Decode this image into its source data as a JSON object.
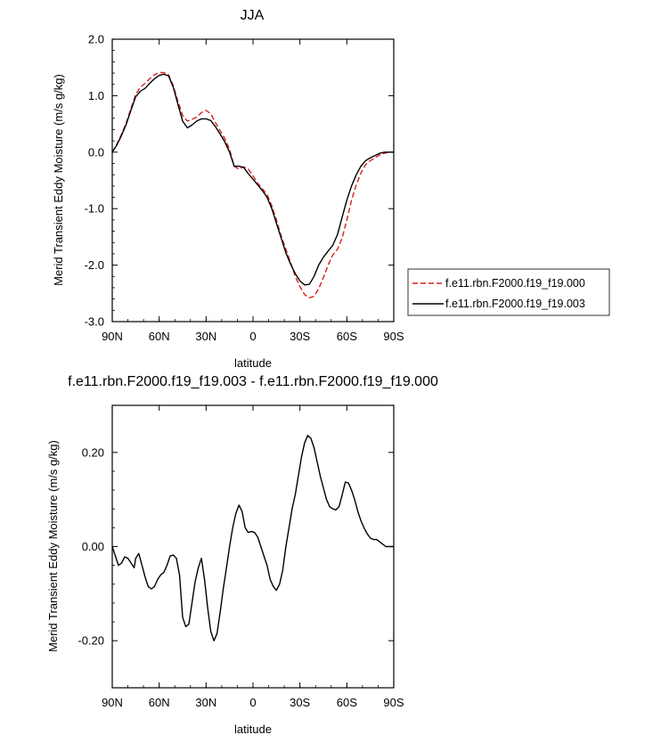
{
  "chart_data": [
    {
      "type": "line",
      "title": "JJA",
      "xlabel": "latitude",
      "ylabel": "Merid Transient Eddy Moisture (m/s g/kg)",
      "xlim": [
        90,
        -90
      ],
      "ylim": [
        -3.0,
        2.0
      ],
      "x_ticks": [
        {
          "value": 90,
          "label": "90N"
        },
        {
          "value": 60,
          "label": "60N"
        },
        {
          "value": 30,
          "label": "30N"
        },
        {
          "value": 0,
          "label": "0"
        },
        {
          "value": -30,
          "label": "30S"
        },
        {
          "value": -60,
          "label": "60S"
        },
        {
          "value": -90,
          "label": "90S"
        }
      ],
      "y_ticks": [
        {
          "value": 2.0,
          "label": "2.0"
        },
        {
          "value": 1.0,
          "label": "1.0"
        },
        {
          "value": 0.0,
          "label": "0.0"
        },
        {
          "value": -1.0,
          "label": "-1.0"
        },
        {
          "value": -2.0,
          "label": "-2.0"
        },
        {
          "value": -3.0,
          "label": "-3.0"
        }
      ],
      "legend_position": "right",
      "series": [
        {
          "name": "f.e11.rbn.F2000.f19_f19.000",
          "color": "#d62020",
          "dash": "dashed",
          "points": [
            [
              90,
              0.0
            ],
            [
              87,
              0.15
            ],
            [
              84,
              0.32
            ],
            [
              81,
              0.52
            ],
            [
              78,
              0.78
            ],
            [
              75,
              1.02
            ],
            [
              72,
              1.15
            ],
            [
              69,
              1.22
            ],
            [
              66,
              1.3
            ],
            [
              63,
              1.37
            ],
            [
              60,
              1.41
            ],
            [
              57,
              1.41
            ],
            [
              54,
              1.37
            ],
            [
              51,
              1.18
            ],
            [
              48,
              0.9
            ],
            [
              45,
              0.65
            ],
            [
              42,
              0.55
            ],
            [
              39,
              0.58
            ],
            [
              36,
              0.62
            ],
            [
              33,
              0.7
            ],
            [
              30,
              0.74
            ],
            [
              27,
              0.68
            ],
            [
              24,
              0.52
            ],
            [
              21,
              0.38
            ],
            [
              18,
              0.24
            ],
            [
              15,
              0.05
            ],
            [
              12,
              -0.25
            ],
            [
              9,
              -0.3
            ],
            [
              6,
              -0.26
            ],
            [
              3,
              -0.3
            ],
            [
              0,
              -0.42
            ],
            [
              -3,
              -0.55
            ],
            [
              -6,
              -0.65
            ],
            [
              -9,
              -0.75
            ],
            [
              -12,
              -0.95
            ],
            [
              -15,
              -1.2
            ],
            [
              -18,
              -1.48
            ],
            [
              -21,
              -1.72
            ],
            [
              -24,
              -1.95
            ],
            [
              -27,
              -2.2
            ],
            [
              -30,
              -2.38
            ],
            [
              -33,
              -2.52
            ],
            [
              -36,
              -2.58
            ],
            [
              -39,
              -2.55
            ],
            [
              -42,
              -2.42
            ],
            [
              -45,
              -2.22
            ],
            [
              -48,
              -2.0
            ],
            [
              -51,
              -1.82
            ],
            [
              -54,
              -1.72
            ],
            [
              -57,
              -1.52
            ],
            [
              -60,
              -1.2
            ],
            [
              -63,
              -0.85
            ],
            [
              -66,
              -0.58
            ],
            [
              -69,
              -0.37
            ],
            [
              -72,
              -0.22
            ],
            [
              -75,
              -0.15
            ],
            [
              -78,
              -0.1
            ],
            [
              -81,
              -0.05
            ],
            [
              -84,
              -0.02
            ],
            [
              -87,
              0.0
            ],
            [
              -90,
              0.0
            ]
          ]
        },
        {
          "name": "f.e11.rbn.F2000.f19_f19.003",
          "color": "#000000",
          "dash": "solid",
          "points": [
            [
              90,
              0.0
            ],
            [
              87,
              0.13
            ],
            [
              84,
              0.3
            ],
            [
              81,
              0.5
            ],
            [
              78,
              0.75
            ],
            [
              75,
              0.98
            ],
            [
              72,
              1.08
            ],
            [
              69,
              1.13
            ],
            [
              66,
              1.22
            ],
            [
              63,
              1.3
            ],
            [
              60,
              1.36
            ],
            [
              57,
              1.38
            ],
            [
              54,
              1.35
            ],
            [
              51,
              1.15
            ],
            [
              48,
              0.85
            ],
            [
              45,
              0.55
            ],
            [
              42,
              0.43
            ],
            [
              39,
              0.48
            ],
            [
              36,
              0.55
            ],
            [
              33,
              0.59
            ],
            [
              30,
              0.59
            ],
            [
              27,
              0.56
            ],
            [
              24,
              0.45
            ],
            [
              21,
              0.32
            ],
            [
              18,
              0.18
            ],
            [
              15,
              0.0
            ],
            [
              12,
              -0.25
            ],
            [
              9,
              -0.25
            ],
            [
              6,
              -0.27
            ],
            [
              3,
              -0.38
            ],
            [
              0,
              -0.48
            ],
            [
              -3,
              -0.58
            ],
            [
              -6,
              -0.68
            ],
            [
              -9,
              -0.8
            ],
            [
              -12,
              -1.0
            ],
            [
              -15,
              -1.26
            ],
            [
              -18,
              -1.52
            ],
            [
              -21,
              -1.78
            ],
            [
              -24,
              -1.98
            ],
            [
              -27,
              -2.15
            ],
            [
              -30,
              -2.28
            ],
            [
              -33,
              -2.35
            ],
            [
              -36,
              -2.34
            ],
            [
              -39,
              -2.2
            ],
            [
              -42,
              -2.0
            ],
            [
              -45,
              -1.86
            ],
            [
              -48,
              -1.75
            ],
            [
              -51,
              -1.65
            ],
            [
              -54,
              -1.46
            ],
            [
              -57,
              -1.15
            ],
            [
              -60,
              -0.85
            ],
            [
              -63,
              -0.6
            ],
            [
              -66,
              -0.4
            ],
            [
              -69,
              -0.25
            ],
            [
              -72,
              -0.15
            ],
            [
              -75,
              -0.1
            ],
            [
              -78,
              -0.06
            ],
            [
              -81,
              -0.02
            ],
            [
              -84,
              0.0
            ],
            [
              -87,
              0.0
            ],
            [
              -90,
              0.0
            ]
          ]
        }
      ]
    },
    {
      "type": "line",
      "title": "f.e11.rbn.F2000.f19_f19.003 - f.e11.rbn.F2000.f19_f19.000",
      "xlabel": "latitude",
      "ylabel": "Merid Transient Eddy Moisture (m/s g/kg)",
      "xlim": [
        90,
        -90
      ],
      "ylim": [
        -0.3,
        0.3
      ],
      "x_ticks": [
        {
          "value": 90,
          "label": "90N"
        },
        {
          "value": 60,
          "label": "60N"
        },
        {
          "value": 30,
          "label": "30N"
        },
        {
          "value": 0,
          "label": "0"
        },
        {
          "value": -30,
          "label": "30S"
        },
        {
          "value": -60,
          "label": "60S"
        },
        {
          "value": -90,
          "label": "90S"
        }
      ],
      "y_ticks": [
        {
          "value": 0.2,
          "label": "0.20"
        },
        {
          "value": 0.0,
          "label": "0.00"
        },
        {
          "value": -0.2,
          "label": "-0.20"
        }
      ],
      "series": [
        {
          "color": "#000000",
          "dash": "solid",
          "points": [
            [
              90,
              0.0
            ],
            [
              88,
              -0.02
            ],
            [
              86,
              -0.04
            ],
            [
              84,
              -0.035
            ],
            [
              82,
              -0.022
            ],
            [
              80,
              -0.025
            ],
            [
              78,
              -0.035
            ],
            [
              76,
              -0.045
            ],
            [
              75,
              -0.025
            ],
            [
              73,
              -0.015
            ],
            [
              71,
              -0.04
            ],
            [
              69,
              -0.065
            ],
            [
              67,
              -0.085
            ],
            [
              65,
              -0.09
            ],
            [
              63,
              -0.085
            ],
            [
              61,
              -0.07
            ],
            [
              59,
              -0.06
            ],
            [
              57,
              -0.055
            ],
            [
              55,
              -0.04
            ],
            [
              53,
              -0.02
            ],
            [
              51,
              -0.018
            ],
            [
              49,
              -0.025
            ],
            [
              47,
              -0.06
            ],
            [
              45,
              -0.15
            ],
            [
              43,
              -0.17
            ],
            [
              41,
              -0.165
            ],
            [
              39,
              -0.12
            ],
            [
              37,
              -0.075
            ],
            [
              35,
              -0.045
            ],
            [
              33,
              -0.025
            ],
            [
              31,
              -0.07
            ],
            [
              29,
              -0.13
            ],
            [
              27,
              -0.18
            ],
            [
              25,
              -0.2
            ],
            [
              23,
              -0.185
            ],
            [
              21,
              -0.14
            ],
            [
              19,
              -0.09
            ],
            [
              17,
              -0.045
            ],
            [
              15,
              0.0
            ],
            [
              13,
              0.04
            ],
            [
              11,
              0.07
            ],
            [
              9,
              0.088
            ],
            [
              7,
              0.075
            ],
            [
              5,
              0.04
            ],
            [
              3,
              0.03
            ],
            [
              1,
              0.032
            ],
            [
              -1,
              0.03
            ],
            [
              -3,
              0.02
            ],
            [
              -5,
              0.0
            ],
            [
              -7,
              -0.02
            ],
            [
              -9,
              -0.04
            ],
            [
              -11,
              -0.07
            ],
            [
              -13,
              -0.085
            ],
            [
              -15,
              -0.093
            ],
            [
              -17,
              -0.08
            ],
            [
              -19,
              -0.05
            ],
            [
              -21,
              -0.0
            ],
            [
              -23,
              0.04
            ],
            [
              -25,
              0.08
            ],
            [
              -27,
              0.11
            ],
            [
              -29,
              0.15
            ],
            [
              -31,
              0.19
            ],
            [
              -33,
              0.22
            ],
            [
              -35,
              0.236
            ],
            [
              -37,
              0.23
            ],
            [
              -39,
              0.21
            ],
            [
              -41,
              0.18
            ],
            [
              -43,
              0.15
            ],
            [
              -45,
              0.125
            ],
            [
              -47,
              0.1
            ],
            [
              -49,
              0.085
            ],
            [
              -51,
              0.08
            ],
            [
              -53,
              0.078
            ],
            [
              -55,
              0.085
            ],
            [
              -57,
              0.11
            ],
            [
              -59,
              0.137
            ],
            [
              -61,
              0.135
            ],
            [
              -63,
              0.12
            ],
            [
              -65,
              0.1
            ],
            [
              -67,
              0.075
            ],
            [
              -69,
              0.055
            ],
            [
              -71,
              0.04
            ],
            [
              -73,
              0.027
            ],
            [
              -75,
              0.018
            ],
            [
              -77,
              0.015
            ],
            [
              -79,
              0.015
            ],
            [
              -81,
              0.01
            ],
            [
              -83,
              0.005
            ],
            [
              -85,
              0.0
            ],
            [
              -90,
              0.0
            ]
          ]
        }
      ]
    }
  ]
}
